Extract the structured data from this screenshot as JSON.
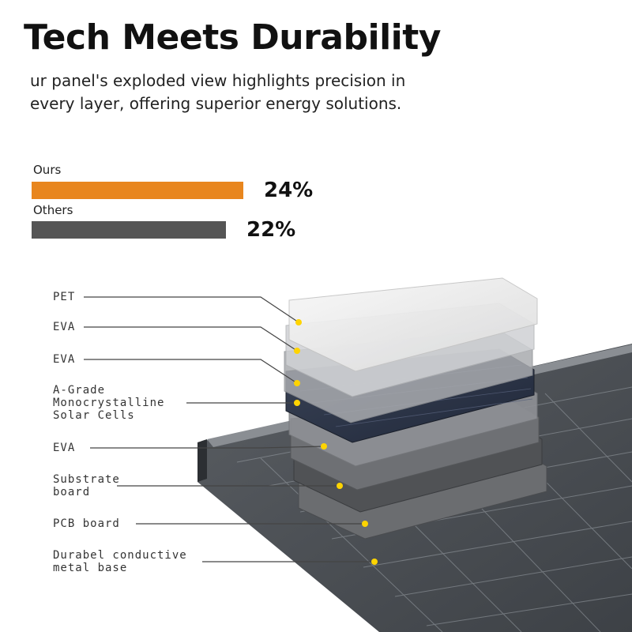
{
  "header": {
    "title": "Tech Meets Durability",
    "subtitle": "ur panel's exploded view highlights precision in every layer, offering superior energy solutions."
  },
  "comparison": {
    "items": [
      {
        "label": "Ours",
        "value_text": "24%",
        "value": 24,
        "color": "#e8861e"
      },
      {
        "label": "Others",
        "value_text": "22%",
        "value": 22,
        "color": "#555555"
      }
    ]
  },
  "layers": [
    {
      "label": "PET"
    },
    {
      "label": "EVA"
    },
    {
      "label": "EVA"
    },
    {
      "label": "A-Grade\nMonocrystalline\nSolar Cells"
    },
    {
      "label": "EVA"
    },
    {
      "label": "Substrate\nboard"
    },
    {
      "label": "PCB board"
    },
    {
      "label": "Durabel conductive\nmetal base"
    }
  ],
  "colors": {
    "marker": "#ffd400",
    "leader": "#444444"
  }
}
